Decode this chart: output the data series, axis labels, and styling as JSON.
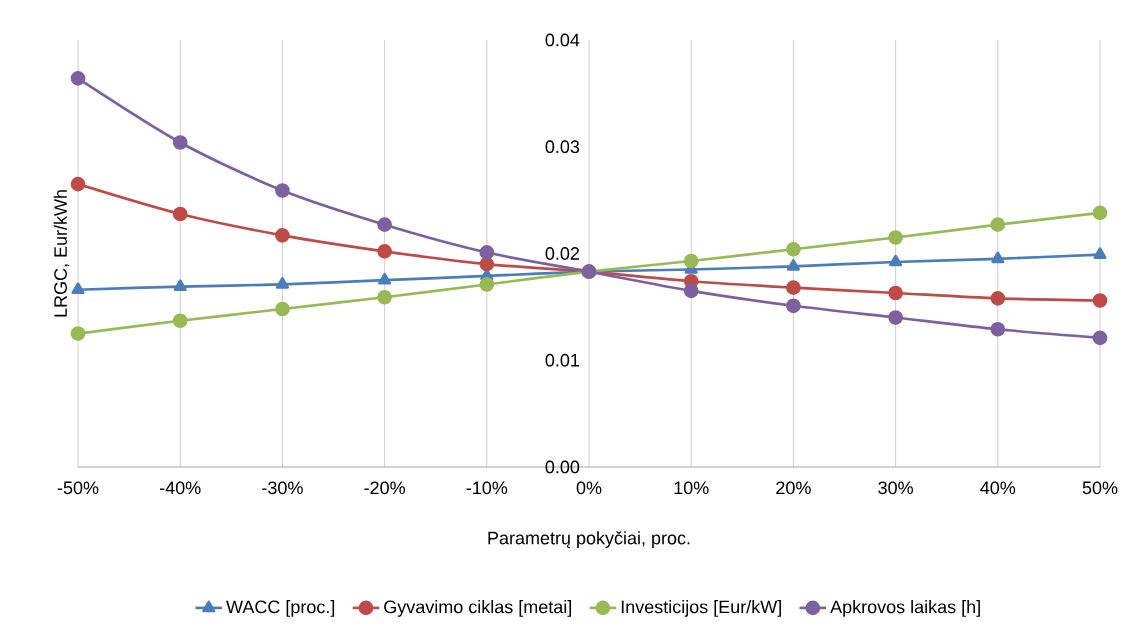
{
  "chart_data": {
    "type": "line",
    "xlabel": "Parametrų pokyčiai, proc.",
    "ylabel": "LRGC, Eur/kWh",
    "categories": [
      "-50%",
      "-40%",
      "-30%",
      "-20%",
      "-10%",
      "0%",
      "10%",
      "20%",
      "30%",
      "40%",
      "50%"
    ],
    "ylim": [
      0,
      0.04
    ],
    "yticks": [
      {
        "value": 0,
        "label": "0.00"
      },
      {
        "value": 0.01,
        "label": "0.01"
      },
      {
        "value": 0.02,
        "label": "0.02"
      },
      {
        "value": 0.03,
        "label": "0.03"
      },
      {
        "value": 0.04,
        "label": "0.04"
      }
    ],
    "grid": "x",
    "legend": "bottom",
    "line_style": "solid",
    "series": [
      {
        "name": "WACC [proc.]",
        "color": "#4a7ebb",
        "marker": "triangle",
        "values": [
          0.0166,
          0.0169,
          0.0171,
          0.0175,
          0.0179,
          0.0183,
          0.0185,
          0.0188,
          0.0192,
          0.0195,
          0.0199
        ]
      },
      {
        "name": "Gyvavimo ciklas [metai]",
        "color": "#be4b48",
        "marker": "circle",
        "values": [
          0.0265,
          0.0237,
          0.0217,
          0.0202,
          0.019,
          0.0183,
          0.0174,
          0.0168,
          0.0163,
          0.0158,
          0.0156
        ]
      },
      {
        "name": "Investicijos [Eur/kW]",
        "color": "#98b954",
        "marker": "circle",
        "values": [
          0.0125,
          0.0137,
          0.0148,
          0.0159,
          0.0171,
          0.0183,
          0.0193,
          0.0204,
          0.0215,
          0.0227,
          0.0238
        ]
      },
      {
        "name": "Apkrovos laikas [h]",
        "color": "#7d60a0",
        "marker": "circle",
        "values": [
          0.0364,
          0.0304,
          0.0259,
          0.0227,
          0.0201,
          0.0183,
          0.0165,
          0.0151,
          0.014,
          0.0129,
          0.0121
        ]
      }
    ]
  }
}
